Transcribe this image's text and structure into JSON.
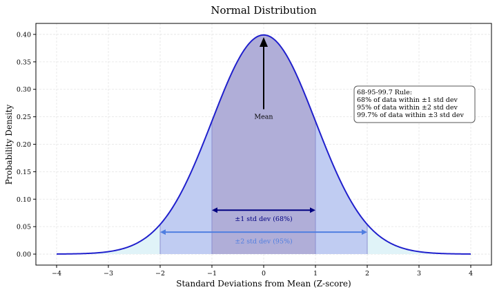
{
  "chart_data": {
    "type": "area",
    "title": "Normal Distribution",
    "xlabel": "Standard Deviations from Mean (Z-score)",
    "ylabel": "Probability Density",
    "xlim": [
      -4.4,
      4.4
    ],
    "ylim": [
      -0.02,
      0.42
    ],
    "xticks": [
      -4,
      -3,
      -2,
      -1,
      0,
      1,
      2,
      3,
      4
    ],
    "yticks": [
      0.0,
      0.05,
      0.1,
      0.15,
      0.2,
      0.25,
      0.3,
      0.35,
      0.4
    ],
    "grid": true,
    "series": [
      {
        "x": [
          -4,
          -3.5,
          -3,
          -2.5,
          -2,
          -1.5,
          -1,
          -0.5,
          0,
          0.5,
          1,
          1.5,
          2,
          2.5,
          3,
          3.5,
          4
        ],
        "values": [
          0.0001,
          0.0009,
          0.0044,
          0.0175,
          0.054,
          0.1295,
          0.242,
          0.3521,
          0.3989,
          0.3521,
          0.242,
          0.1295,
          0.054,
          0.0175,
          0.0044,
          0.0009,
          0.0001
        ],
        "color": "#1f1fcc"
      }
    ],
    "shaded_regions": [
      {
        "from": -4,
        "to": 4,
        "color": "#e0f3f8"
      },
      {
        "from": -2,
        "to": 2,
        "color": "#c0ccf2"
      },
      {
        "from": -1,
        "to": 1,
        "color": "#b0aed8"
      }
    ],
    "annotations": {
      "mean": {
        "text": "Mean",
        "x": 0,
        "y": 0.4,
        "text_y": 0.25
      },
      "std1": {
        "text": "±1 std dev (68%)",
        "from": -1,
        "to": 1,
        "y": 0.08,
        "label_y": 0.064,
        "color": "#000080"
      },
      "std2": {
        "text": "±2 std dev (95%)",
        "from": -2,
        "to": 2,
        "y": 0.04,
        "label_y": 0.023,
        "color": "#4f7ee0"
      }
    },
    "rule_box": {
      "position": "right",
      "lines": [
        "68-95-99.7 Rule:",
        "68% of data within ±1 std dev",
        "95% of data within ±2 std dev",
        "99.7% of data within ±3 std dev"
      ]
    }
  }
}
